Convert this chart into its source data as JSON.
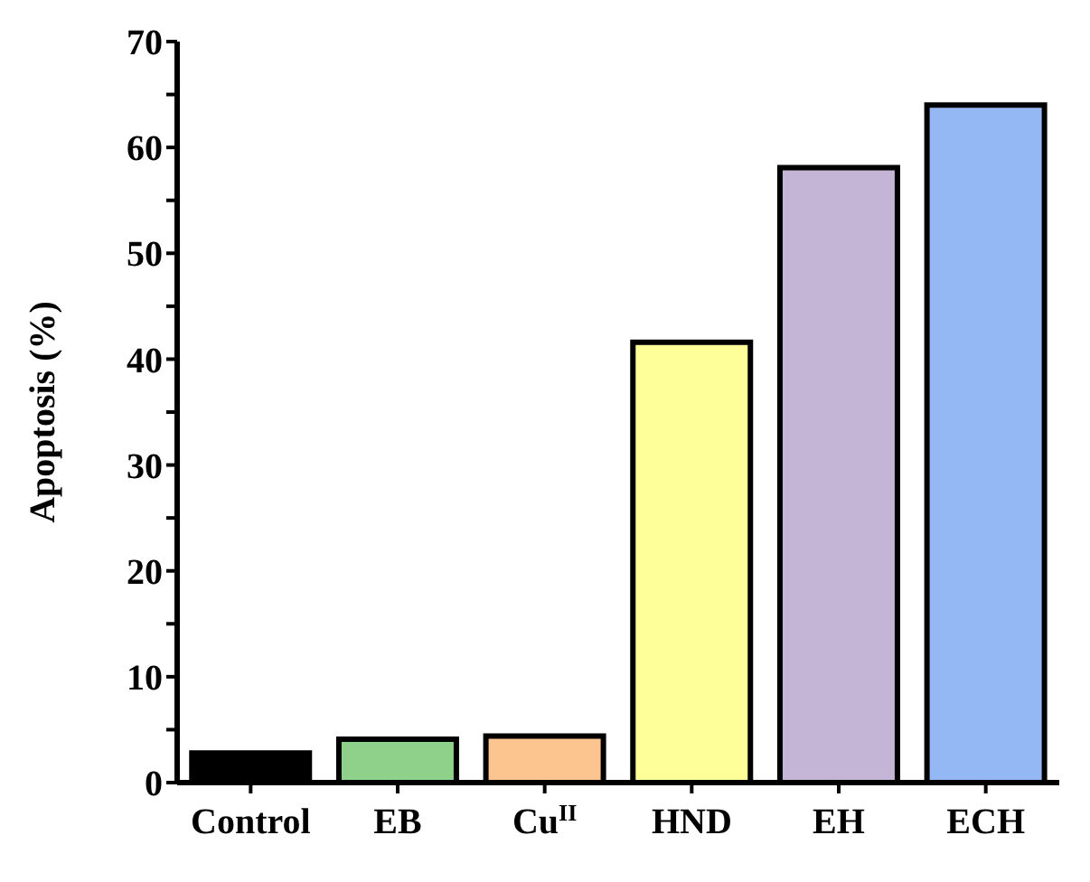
{
  "chart_data": {
    "type": "bar",
    "ylabel": "Apoptosis (%)",
    "categories": [
      "Control",
      "EB",
      "Cu$^{II}$",
      "HND",
      "EH",
      "ECH"
    ],
    "values": [
      2.8,
      4.1,
      4.4,
      41.6,
      58.1,
      64.0
    ],
    "colors": [
      "#000000",
      "#8fd08a",
      "#fcc58f",
      "#ffff99",
      "#c4b4d6",
      "#94b8f4"
    ],
    "ylim": [
      0,
      70
    ],
    "yticks": [
      0,
      {
        "value": 5,
        "label": null
      },
      10,
      {
        "value": 15,
        "label": null
      },
      20,
      {
        "value": 25,
        "label": null
      },
      30,
      {
        "value": 35,
        "label": null
      },
      40,
      {
        "value": 45,
        "label": null
      },
      50,
      {
        "value": 55,
        "label": null
      },
      60,
      {
        "value": 65,
        "label": null
      },
      70
    ],
    "grid": false
  }
}
